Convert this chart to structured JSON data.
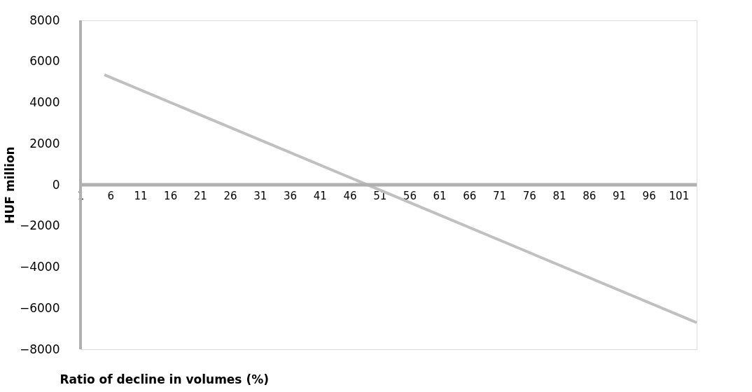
{
  "chart_data": {
    "type": "line",
    "xlabel": "Ratio of decline in volumes (%)",
    "ylabel": "HUF million",
    "x": [
      5,
      104
    ],
    "series": [
      {
        "color": "#c0c0c0",
        "values": [
          5350,
          -6700
        ]
      }
    ],
    "xlim": [
      1,
      104
    ],
    "xticks": [
      1,
      6,
      11,
      16,
      21,
      26,
      31,
      36,
      41,
      46,
      51,
      56,
      61,
      66,
      71,
      76,
      81,
      86,
      91,
      96,
      101
    ],
    "ylim": [
      -8000,
      8000
    ],
    "yticks": [
      -8000,
      -6000,
      -4000,
      -2000,
      0,
      2000,
      4000,
      6000,
      8000
    ],
    "grid": false,
    "marker": "none",
    "line_style": "solid"
  }
}
